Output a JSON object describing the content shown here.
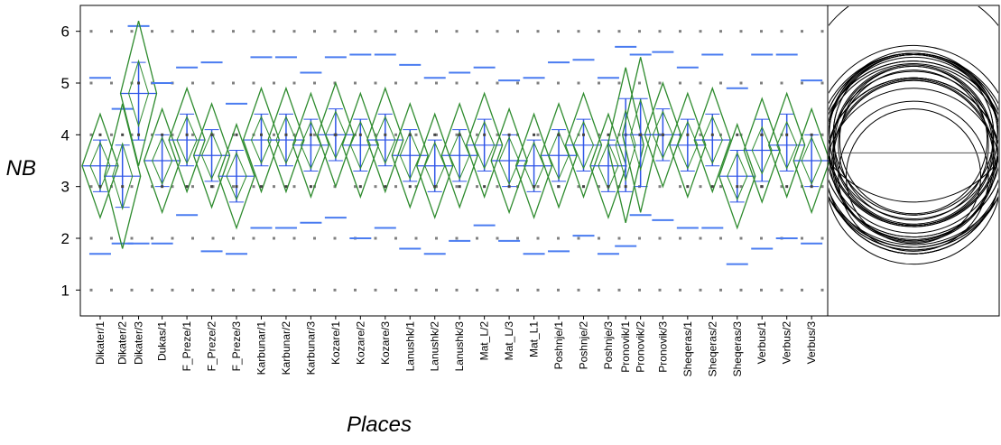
{
  "chart_data": {
    "type": "diamond-plot",
    "ylabel": "NB",
    "xlabel": "Places",
    "ylim": [
      0.5,
      6.5
    ],
    "yticks": [
      1,
      2,
      3,
      4,
      5,
      6
    ],
    "grid": "dotted",
    "categories": [
      "Dikater/1",
      "Dikater/2",
      "Dikater/3",
      "Dukas/1",
      "F_Preze/1",
      "F_Preze/2",
      "F_Preze/3",
      "Karbunar/1",
      "Karbunar/2",
      "Karbunar/3",
      "Kozare/1",
      "Kozare/2",
      "Kozare/3",
      "Lanushk/1",
      "Lanushk/2",
      "Lanushk/3",
      "Mat_L/2",
      "Mat_L/3",
      "Mat_L1",
      "Poshnje/1",
      "Poshnje/2",
      "Poshnje/3",
      "Pronovik/1",
      "Pronovik/2",
      "Pronovik/3",
      "Sheqeras/1",
      "Sheqeras/2",
      "Sheqeras/3",
      "Verbus/1",
      "Verbus/2",
      "Verbus/3"
    ],
    "x_positions": [
      1,
      1.9,
      2.55,
      3.5,
      4.5,
      5.5,
      6.5,
      7.5,
      8.5,
      9.5,
      10.5,
      11.5,
      12.5,
      13.5,
      14.5,
      15.5,
      16.5,
      17.5,
      18.5,
      19.5,
      20.5,
      21.5,
      22.2,
      22.8,
      23.7,
      24.7,
      25.7,
      26.7,
      27.7,
      28.7,
      29.7
    ],
    "means": [
      3.4,
      3.2,
      4.8,
      3.5,
      3.9,
      3.6,
      3.2,
      3.9,
      3.9,
      3.8,
      4.0,
      3.8,
      3.9,
      3.6,
      3.4,
      3.6,
      3.8,
      3.5,
      3.4,
      3.6,
      3.8,
      3.4,
      3.8,
      4.0,
      4.0,
      3.8,
      3.9,
      3.2,
      3.7,
      3.8,
      3.5
    ],
    "diamond_low": [
      2.4,
      1.8,
      3.4,
      2.5,
      2.9,
      2.6,
      2.2,
      2.9,
      2.9,
      2.8,
      3.0,
      2.8,
      2.9,
      2.6,
      2.4,
      2.6,
      2.8,
      2.5,
      2.4,
      2.6,
      2.8,
      2.4,
      2.3,
      2.5,
      3.0,
      2.8,
      2.9,
      2.2,
      2.7,
      2.8,
      2.5
    ],
    "diamond_high": [
      4.4,
      4.6,
      6.2,
      4.5,
      4.9,
      4.6,
      4.2,
      4.9,
      4.9,
      4.8,
      5.0,
      4.8,
      4.9,
      4.6,
      4.4,
      4.6,
      4.8,
      4.5,
      4.4,
      4.6,
      4.8,
      4.4,
      5.3,
      5.5,
      5.0,
      4.8,
      4.9,
      4.2,
      4.7,
      4.8,
      4.5
    ],
    "ci_low": [
      2.9,
      2.6,
      3.9,
      3.0,
      3.4,
      3.1,
      2.7,
      3.4,
      3.4,
      3.3,
      3.5,
      3.3,
      3.4,
      3.1,
      2.9,
      3.1,
      3.3,
      3.0,
      2.9,
      3.1,
      3.3,
      2.9,
      2.9,
      3.0,
      3.5,
      3.3,
      3.4,
      2.7,
      3.1,
      3.3,
      3.0
    ],
    "ci_high": [
      3.9,
      3.8,
      5.4,
      4.0,
      4.4,
      4.1,
      3.7,
      4.4,
      4.4,
      4.3,
      4.5,
      4.3,
      4.4,
      4.1,
      3.9,
      4.1,
      4.3,
      4.0,
      3.9,
      4.1,
      4.3,
      3.9,
      4.7,
      4.7,
      4.5,
      4.3,
      4.4,
      3.7,
      4.3,
      4.4,
      4.0
    ],
    "comp_high": [
      5.1,
      4.5,
      6.1,
      5.0,
      5.3,
      5.4,
      4.6,
      5.5,
      5.5,
      5.2,
      5.5,
      5.55,
      5.55,
      5.35,
      5.1,
      5.2,
      5.3,
      5.05,
      5.1,
      5.4,
      5.45,
      5.1,
      5.7,
      5.55,
      5.6,
      5.3,
      5.55,
      4.9,
      5.55,
      5.55,
      5.05
    ],
    "comp_low": [
      1.7,
      1.9,
      1.9,
      1.9,
      2.45,
      1.75,
      1.7,
      2.2,
      2.2,
      2.3,
      2.4,
      2.0,
      2.2,
      1.8,
      1.7,
      1.95,
      2.25,
      1.95,
      1.7,
      1.75,
      2.05,
      1.7,
      1.85,
      2.45,
      2.35,
      2.2,
      2.2,
      1.5,
      1.8,
      2.0,
      1.9
    ],
    "grand_mean": 3.65,
    "colors": {
      "diamond": "#2e8b2e",
      "ci": "#2f55e8",
      "comparison": "#4a7cf0",
      "grid": "#808080",
      "axis": "#000000"
    }
  }
}
